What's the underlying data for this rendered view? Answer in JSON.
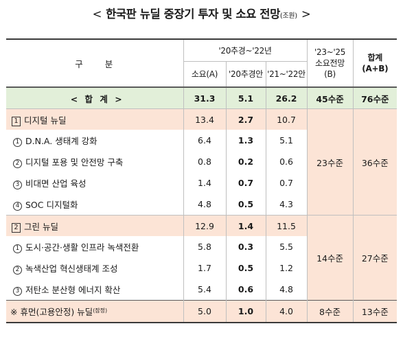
{
  "title": {
    "open": "<",
    "text": "한국판 뉴딜 중장기 투자 및 소요 전망",
    "unit": "(조원)",
    "close": ">"
  },
  "headers": {
    "gubun": "구 분",
    "period_2022": "'20추경~'22년",
    "required_a": "소요(A)",
    "budget_2020": "'20추경안",
    "budget_2122": "'21~'22안",
    "forecast_line1": "'23~'25",
    "forecast_line2": "소요전망",
    "forecast_line3": "(B)",
    "total_line1": "합계",
    "total_line2": "(A+B)"
  },
  "total_row": {
    "label": "< 합 계 >",
    "a": "31.3",
    "b": "5.1",
    "c": "26.2",
    "forecast": "45수준",
    "sum": "76수준"
  },
  "digital": {
    "num": "1",
    "label": "디지털 뉴딜",
    "a": "13.4",
    "b": "2.7",
    "c": "10.7",
    "forecast": "23수준",
    "sum": "36수준",
    "items": [
      {
        "num": "1",
        "label": "D.N.A. 생태계 강화",
        "a": "6.4",
        "b": "1.3",
        "c": "5.1"
      },
      {
        "num": "2",
        "label": "디지털 포용 및 안전망 구축",
        "a": "0.8",
        "b": "0.2",
        "c": "0.6"
      },
      {
        "num": "3",
        "label": "비대면 산업 육성",
        "a": "1.4",
        "b": "0.7",
        "c": "0.7"
      },
      {
        "num": "4",
        "label": "SOC 디지털화",
        "a": "4.8",
        "b": "0.5",
        "c": "4.3"
      }
    ]
  },
  "green": {
    "num": "2",
    "label": "그린 뉴딜",
    "a": "12.9",
    "b": "1.4",
    "c": "11.5",
    "forecast": "14수준",
    "sum": "27수준",
    "items": [
      {
        "num": "1",
        "label": "도시·공간·생활 인프라 녹색전환",
        "a": "5.8",
        "b": "0.3",
        "c": "5.5"
      },
      {
        "num": "2",
        "label": "녹색산업 혁신생태계 조성",
        "a": "1.7",
        "b": "0.5",
        "c": "1.2"
      },
      {
        "num": "3",
        "label": "저탄소 분산형 에너지 확산",
        "a": "5.4",
        "b": "0.6",
        "c": "4.8"
      }
    ]
  },
  "human": {
    "label": "※ 휴먼(고용안정) 뉴딜",
    "note": "(잠정)",
    "a": "5.0",
    "b": "1.0",
    "c": "4.0",
    "forecast": "8수준",
    "sum": "13수준"
  }
}
